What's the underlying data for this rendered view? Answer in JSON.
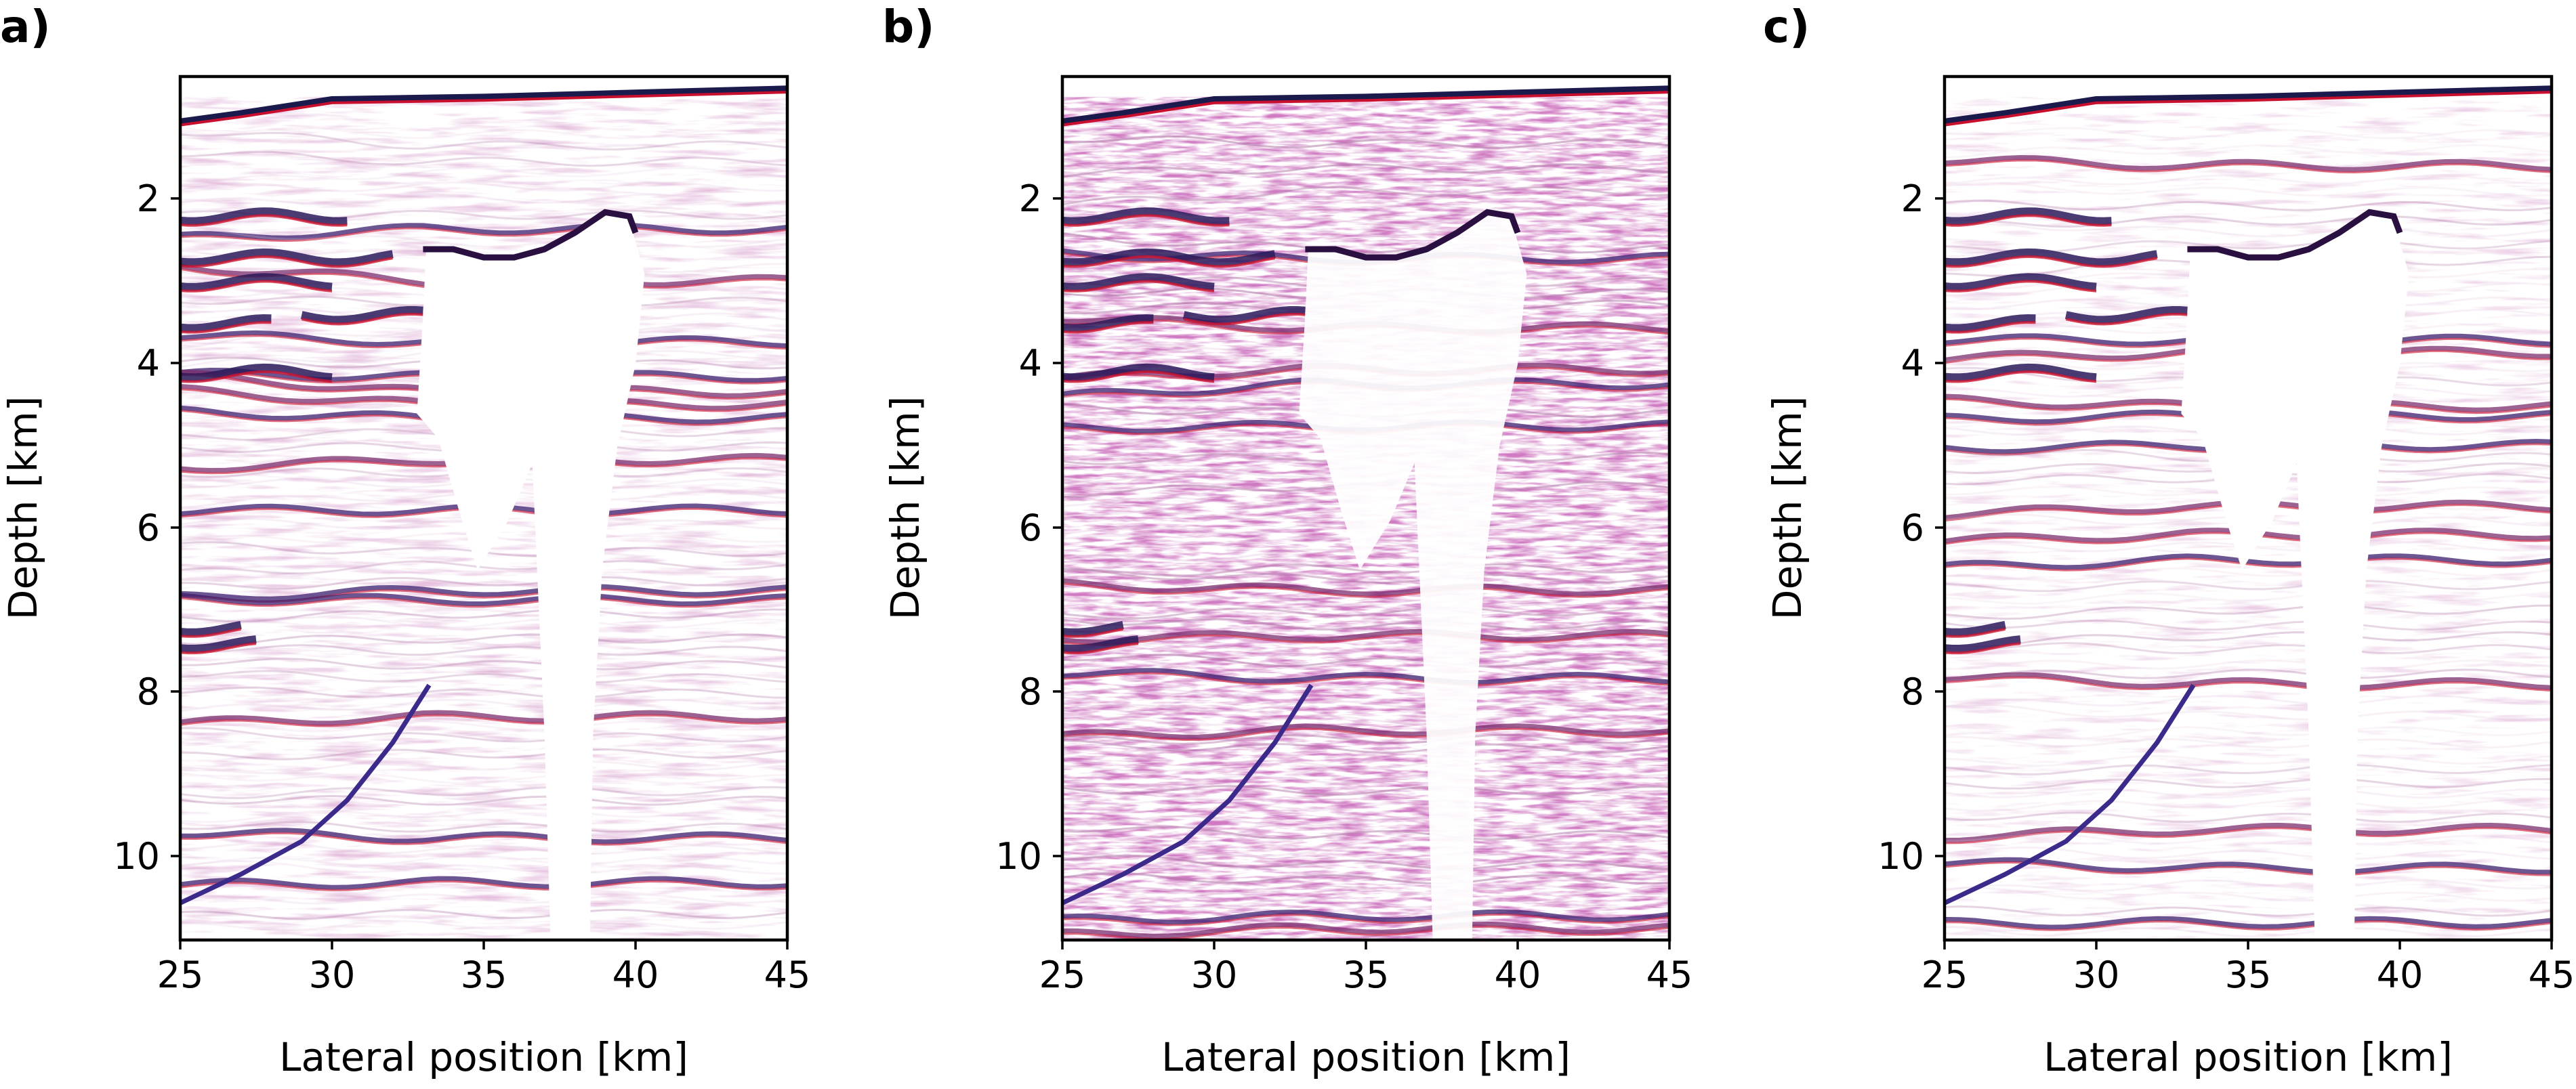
{
  "figure": {
    "panels": [
      {
        "label": "a)",
        "xlabel": "Lateral position [km]",
        "ylabel": "Depth [km]",
        "xticks": [
          "25",
          "30",
          "35",
          "40",
          "45"
        ],
        "yticks": [
          "2",
          "4",
          "6",
          "8",
          "10"
        ]
      },
      {
        "label": "b)",
        "xlabel": "Lateral position [km]",
        "ylabel": "Depth [km]",
        "xticks": [
          "25",
          "30",
          "35",
          "40",
          "45"
        ],
        "yticks": [
          "2",
          "4",
          "6",
          "8",
          "10"
        ]
      },
      {
        "label": "c)",
        "xlabel": "Lateral position [km]",
        "ylabel": "Depth [km]",
        "xticks": [
          "25",
          "30",
          "35",
          "40",
          "45"
        ],
        "yticks": [
          "2",
          "4",
          "6",
          "8",
          "10"
        ]
      }
    ]
  },
  "chart_data": [
    {
      "type": "heatmap",
      "panel": "a)",
      "xlabel": "Lateral position [km]",
      "ylabel": "Depth [km]",
      "xlim": [
        25,
        45
      ],
      "ylim": [
        11,
        0.5
      ],
      "x_ticks": [
        25,
        30,
        35,
        40,
        45
      ],
      "y_ticks": [
        2,
        4,
        6,
        8,
        10
      ],
      "colormap": [
        "#1f3fbf",
        "#ffffff",
        "#c8102e"
      ],
      "noise_level": 0.25,
      "salt_body_top_depth": [
        [
          33.0,
          2.6
        ],
        [
          34.0,
          2.6
        ],
        [
          35.0,
          2.7
        ],
        [
          36.0,
          2.7
        ],
        [
          37.0,
          2.6
        ],
        [
          38.0,
          2.4
        ],
        [
          39.0,
          2.15
        ],
        [
          39.8,
          2.2
        ],
        [
          40.0,
          2.4
        ]
      ],
      "seafloor_depth": [
        [
          25,
          1.05
        ],
        [
          27,
          0.95
        ],
        [
          30,
          0.78
        ],
        [
          35,
          0.75
        ],
        [
          40,
          0.7
        ],
        [
          45,
          0.65
        ]
      ]
    },
    {
      "type": "heatmap",
      "panel": "b)",
      "xlabel": "Lateral position [km]",
      "ylabel": "Depth [km]",
      "xlim": [
        25,
        45
      ],
      "ylim": [
        11,
        0.5
      ],
      "x_ticks": [
        25,
        30,
        35,
        40,
        45
      ],
      "y_ticks": [
        2,
        4,
        6,
        8,
        10
      ],
      "colormap": [
        "#1f3fbf",
        "#ffffff",
        "#c8102e"
      ],
      "noise_level": 1.0,
      "salt_body_top_depth": [
        [
          33.0,
          2.6
        ],
        [
          34.0,
          2.6
        ],
        [
          35.0,
          2.7
        ],
        [
          36.0,
          2.7
        ],
        [
          37.0,
          2.6
        ],
        [
          38.0,
          2.4
        ],
        [
          39.0,
          2.15
        ],
        [
          39.8,
          2.2
        ],
        [
          40.0,
          2.4
        ]
      ],
      "seafloor_depth": [
        [
          25,
          1.05
        ],
        [
          27,
          0.95
        ],
        [
          30,
          0.78
        ],
        [
          35,
          0.75
        ],
        [
          40,
          0.7
        ],
        [
          45,
          0.65
        ]
      ]
    },
    {
      "type": "heatmap",
      "panel": "c)",
      "xlabel": "Lateral position [km]",
      "ylabel": "Depth [km]",
      "xlim": [
        25,
        45
      ],
      "ylim": [
        11,
        0.5
      ],
      "x_ticks": [
        25,
        30,
        35,
        40,
        45
      ],
      "y_ticks": [
        2,
        4,
        6,
        8,
        10
      ],
      "colormap": [
        "#1f3fbf",
        "#ffffff",
        "#c8102e"
      ],
      "noise_level": 0.2,
      "salt_body_top_depth": [
        [
          33.0,
          2.6
        ],
        [
          34.0,
          2.6
        ],
        [
          35.0,
          2.7
        ],
        [
          36.0,
          2.7
        ],
        [
          37.0,
          2.6
        ],
        [
          38.0,
          2.4
        ],
        [
          39.0,
          2.15
        ],
        [
          39.8,
          2.2
        ],
        [
          40.0,
          2.4
        ]
      ],
      "seafloor_depth": [
        [
          25,
          1.05
        ],
        [
          27,
          0.95
        ],
        [
          30,
          0.78
        ],
        [
          35,
          0.75
        ],
        [
          40,
          0.7
        ],
        [
          45,
          0.65
        ]
      ]
    }
  ]
}
